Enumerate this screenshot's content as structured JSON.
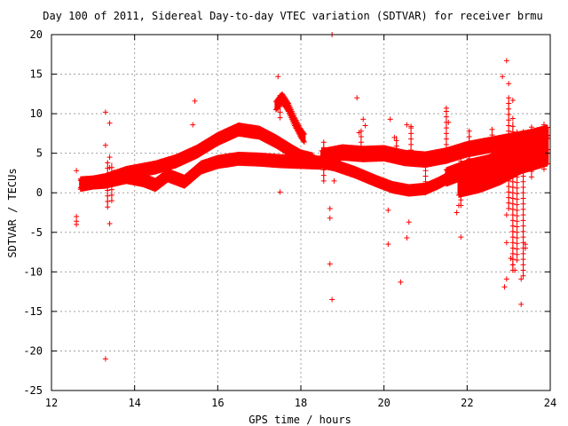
{
  "chart_data": {
    "type": "scatter",
    "title": "Day 100 of 2011, Sidereal Day-to-day VTEC variation (SDTVAR) for receiver brmu",
    "xlabel": "GPS time / hours",
    "ylabel": "SDTVAR / TECUs",
    "xlim": [
      12,
      24
    ],
    "ylim": [
      -25,
      20
    ],
    "xticks": [
      12,
      14,
      16,
      18,
      20,
      22,
      24
    ],
    "yticks": [
      -25,
      -20,
      -15,
      -10,
      -5,
      0,
      5,
      10,
      15,
      20
    ],
    "grid": true,
    "marker": "+",
    "color": "#ff0000",
    "bands": [
      {
        "name": "upper",
        "x": [
          12.7,
          13.3,
          13.8,
          14.5,
          15.0,
          15.5,
          16.0,
          16.5,
          17.0,
          17.4,
          17.8,
          18.0,
          18.3
        ],
        "y": [
          1.0,
          1.6,
          2.5,
          3.2,
          4.0,
          5.2,
          6.8,
          8.0,
          7.6,
          6.5,
          5.2,
          4.6,
          4.2
        ]
      },
      {
        "name": "lower",
        "x": [
          12.7,
          13.3,
          13.8,
          14.2,
          14.5,
          14.8,
          15.2,
          15.6,
          16.0,
          16.5,
          17.0,
          17.5,
          18.0,
          18.5
        ],
        "y": [
          1.2,
          1.4,
          2.0,
          1.6,
          1.0,
          2.2,
          1.4,
          3.2,
          3.9,
          4.3,
          4.2,
          4.0,
          3.9,
          3.8
        ]
      },
      {
        "name": "descending",
        "x": [
          18.3,
          18.8,
          19.3,
          19.8,
          20.2,
          20.6,
          21.0,
          21.3,
          21.7
        ],
        "y": [
          4.0,
          3.5,
          2.6,
          1.5,
          0.7,
          0.3,
          0.5,
          1.2,
          2.3
        ]
      },
      {
        "name": "mid",
        "x": [
          18.5,
          19.0,
          19.5,
          20.0,
          20.5,
          21.0,
          21.5,
          22.0,
          22.5,
          23.0,
          23.5,
          23.95
        ],
        "y": [
          4.6,
          5.1,
          4.9,
          5.0,
          4.4,
          4.2,
          4.7,
          5.5,
          6.0,
          6.5,
          7.0,
          7.6
        ]
      },
      {
        "name": "late-upper",
        "x": [
          21.5,
          22.0,
          22.5,
          23.0,
          23.5,
          23.95
        ],
        "y": [
          2.0,
          3.0,
          3.6,
          4.6,
          5.5,
          6.4
        ]
      },
      {
        "name": "late-lower",
        "x": [
          21.8,
          22.3,
          22.8,
          23.3,
          23.95
        ],
        "y": [
          0.6,
          1.2,
          2.2,
          3.6,
          4.6
        ]
      },
      {
        "name": "arc",
        "x": [
          17.4,
          17.55,
          17.7,
          17.85,
          18.0,
          18.1
        ],
        "y": [
          11.0,
          12.0,
          10.8,
          9.0,
          7.5,
          6.8
        ]
      }
    ],
    "outliers": [
      [
        12.6,
        -3.0
      ],
      [
        12.6,
        -3.6
      ],
      [
        12.6,
        -4.0
      ],
      [
        12.6,
        2.8
      ],
      [
        13.3,
        10.2
      ],
      [
        13.3,
        6.0
      ],
      [
        13.4,
        8.8
      ],
      [
        13.4,
        4.5
      ],
      [
        13.4,
        -3.9
      ],
      [
        13.3,
        -21.0
      ],
      [
        13.4,
        3.2
      ],
      [
        13.5,
        2.6
      ],
      [
        15.45,
        11.6
      ],
      [
        15.4,
        8.6
      ],
      [
        17.45,
        14.7
      ],
      [
        17.5,
        0.1
      ],
      [
        17.45,
        11.3
      ],
      [
        17.45,
        10.6
      ],
      [
        18.7,
        -9.0
      ],
      [
        18.75,
        -13.5
      ],
      [
        18.7,
        -2.0
      ],
      [
        18.7,
        -3.2
      ],
      [
        18.75,
        20.0
      ],
      [
        18.8,
        1.5
      ],
      [
        19.35,
        12.0
      ],
      [
        19.5,
        9.3
      ],
      [
        19.55,
        8.5
      ],
      [
        19.4,
        7.6
      ],
      [
        20.15,
        9.3
      ],
      [
        20.1,
        -2.2
      ],
      [
        20.1,
        -6.5
      ],
      [
        20.4,
        -11.3
      ],
      [
        20.55,
        -5.7
      ],
      [
        20.6,
        -3.7
      ],
      [
        20.55,
        8.6
      ],
      [
        20.65,
        8.4
      ],
      [
        20.25,
        7.0
      ],
      [
        21.5,
        10.7
      ],
      [
        21.55,
        8.9
      ],
      [
        21.8,
        -1.6
      ],
      [
        21.85,
        -5.6
      ],
      [
        21.75,
        -2.5
      ],
      [
        22.85,
        14.7
      ],
      [
        22.95,
        16.7
      ],
      [
        23.0,
        13.8
      ],
      [
        22.95,
        -2.8
      ],
      [
        23.1,
        11.7
      ],
      [
        22.9,
        -11.9
      ],
      [
        22.95,
        -10.9
      ],
      [
        22.95,
        -6.3
      ],
      [
        23.05,
        -8.3
      ],
      [
        23.1,
        -9.1
      ],
      [
        23.15,
        -9.8
      ],
      [
        23.3,
        -14.1
      ],
      [
        23.3,
        -10.9
      ],
      [
        23.4,
        -7.0
      ],
      [
        23.4,
        -6.5
      ],
      [
        23.1,
        9.4
      ],
      [
        23.45,
        7.3
      ],
      [
        23.6,
        6.8
      ]
    ],
    "spikes": [
      {
        "x": 13.35,
        "ymin": -1.8,
        "ymax": 4.0
      },
      {
        "x": 13.45,
        "ymin": -1.0,
        "ymax": 3.8
      },
      {
        "x": 17.5,
        "ymin": 9.5,
        "ymax": 12.4
      },
      {
        "x": 18.55,
        "ymin": 1.5,
        "ymax": 6.5
      },
      {
        "x": 19.45,
        "ymin": 5.0,
        "ymax": 8.0
      },
      {
        "x": 20.3,
        "ymin": 4.5,
        "ymax": 7.2
      },
      {
        "x": 20.65,
        "ymin": 4.0,
        "ymax": 8.3
      },
      {
        "x": 21.0,
        "ymin": 0.0,
        "ymax": 4.2
      },
      {
        "x": 21.5,
        "ymin": 4.0,
        "ymax": 10.5
      },
      {
        "x": 21.85,
        "ymin": -1.6,
        "ymax": 4.0
      },
      {
        "x": 22.05,
        "ymin": 0.8,
        "ymax": 8.0
      },
      {
        "x": 22.6,
        "ymin": 1.0,
        "ymax": 8.3
      },
      {
        "x": 23.0,
        "ymin": -2.0,
        "ymax": 12.0
      },
      {
        "x": 23.1,
        "ymin": -9.8,
        "ymax": 9.0
      },
      {
        "x": 23.2,
        "ymin": -8.5,
        "ymax": 8.0
      },
      {
        "x": 23.35,
        "ymin": -10.5,
        "ymax": 8.0
      },
      {
        "x": 23.55,
        "ymin": 2.0,
        "ymax": 8.5
      },
      {
        "x": 23.85,
        "ymin": 3.0,
        "ymax": 9.0
      }
    ]
  }
}
